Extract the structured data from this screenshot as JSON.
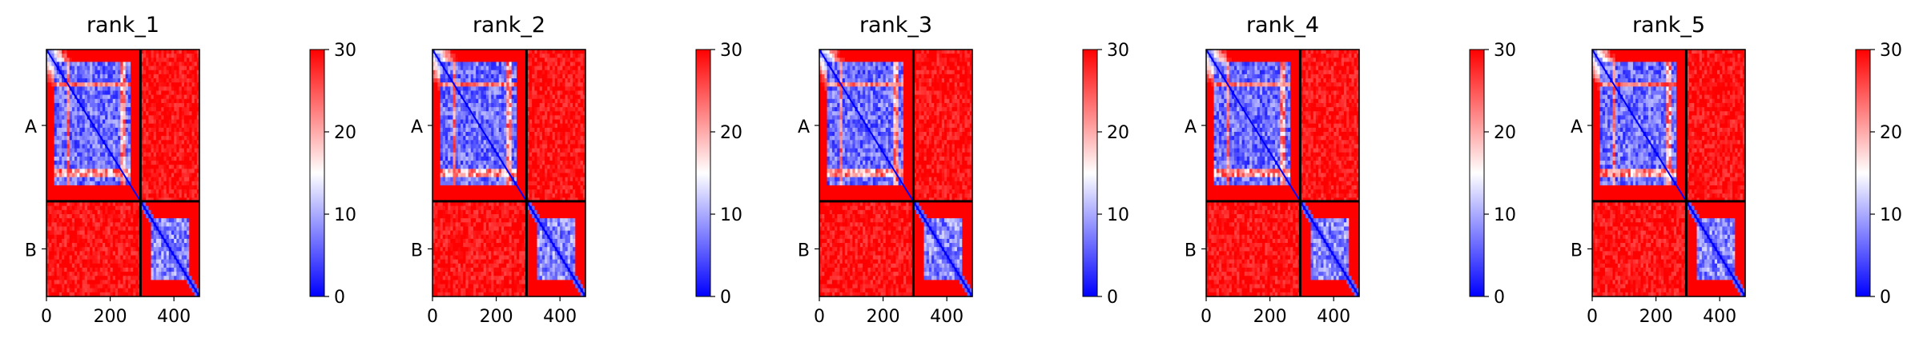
{
  "figure": {
    "colors": {
      "low": "#0000ff",
      "mid": "#ffffff",
      "high": "#ff0000",
      "chain_separator": "#000000"
    }
  },
  "chart_data": [
    {
      "type": "heatmap",
      "title": "rank_1",
      "x_ticks": [
        "0",
        "200",
        "400"
      ],
      "y_tick_labels": [
        "A",
        "B"
      ],
      "chains": [
        {
          "name": "A",
          "length": 295
        },
        {
          "name": "B",
          "length": 185
        }
      ],
      "chain_boundary": 295,
      "xlim": [
        0,
        480
      ],
      "colorbar": {
        "min": 0,
        "max": 30,
        "ticks": [
          "0",
          "10",
          "20",
          "30"
        ],
        "cmap": "bwr"
      }
    },
    {
      "type": "heatmap",
      "title": "rank_2",
      "x_ticks": [
        "0",
        "200",
        "400"
      ],
      "y_tick_labels": [
        "A",
        "B"
      ],
      "chains": [
        {
          "name": "A",
          "length": 295
        },
        {
          "name": "B",
          "length": 185
        }
      ],
      "chain_boundary": 295,
      "xlim": [
        0,
        480
      ],
      "colorbar": {
        "min": 0,
        "max": 30,
        "ticks": [
          "0",
          "10",
          "20",
          "30"
        ],
        "cmap": "bwr"
      }
    },
    {
      "type": "heatmap",
      "title": "rank_3",
      "x_ticks": [
        "0",
        "200",
        "400"
      ],
      "y_tick_labels": [
        "A",
        "B"
      ],
      "chains": [
        {
          "name": "A",
          "length": 295
        },
        {
          "name": "B",
          "length": 185
        }
      ],
      "chain_boundary": 295,
      "xlim": [
        0,
        480
      ],
      "colorbar": {
        "min": 0,
        "max": 30,
        "ticks": [
          "0",
          "10",
          "20",
          "30"
        ],
        "cmap": "bwr"
      }
    },
    {
      "type": "heatmap",
      "title": "rank_4",
      "x_ticks": [
        "0",
        "200",
        "400"
      ],
      "y_tick_labels": [
        "A",
        "B"
      ],
      "chains": [
        {
          "name": "A",
          "length": 295
        },
        {
          "name": "B",
          "length": 185
        }
      ],
      "chain_boundary": 295,
      "xlim": [
        0,
        480
      ],
      "colorbar": {
        "min": 0,
        "max": 30,
        "ticks": [
          "0",
          "10",
          "20",
          "30"
        ],
        "cmap": "bwr"
      }
    },
    {
      "type": "heatmap",
      "title": "rank_5",
      "x_ticks": [
        "0",
        "200",
        "400"
      ],
      "y_tick_labels": [
        "A",
        "B"
      ],
      "chains": [
        {
          "name": "A",
          "length": 295
        },
        {
          "name": "B",
          "length": 185
        }
      ],
      "chain_boundary": 295,
      "xlim": [
        0,
        480
      ],
      "colorbar": {
        "min": 0,
        "max": 30,
        "ticks": [
          "0",
          "10",
          "20",
          "30"
        ],
        "cmap": "bwr"
      }
    }
  ]
}
